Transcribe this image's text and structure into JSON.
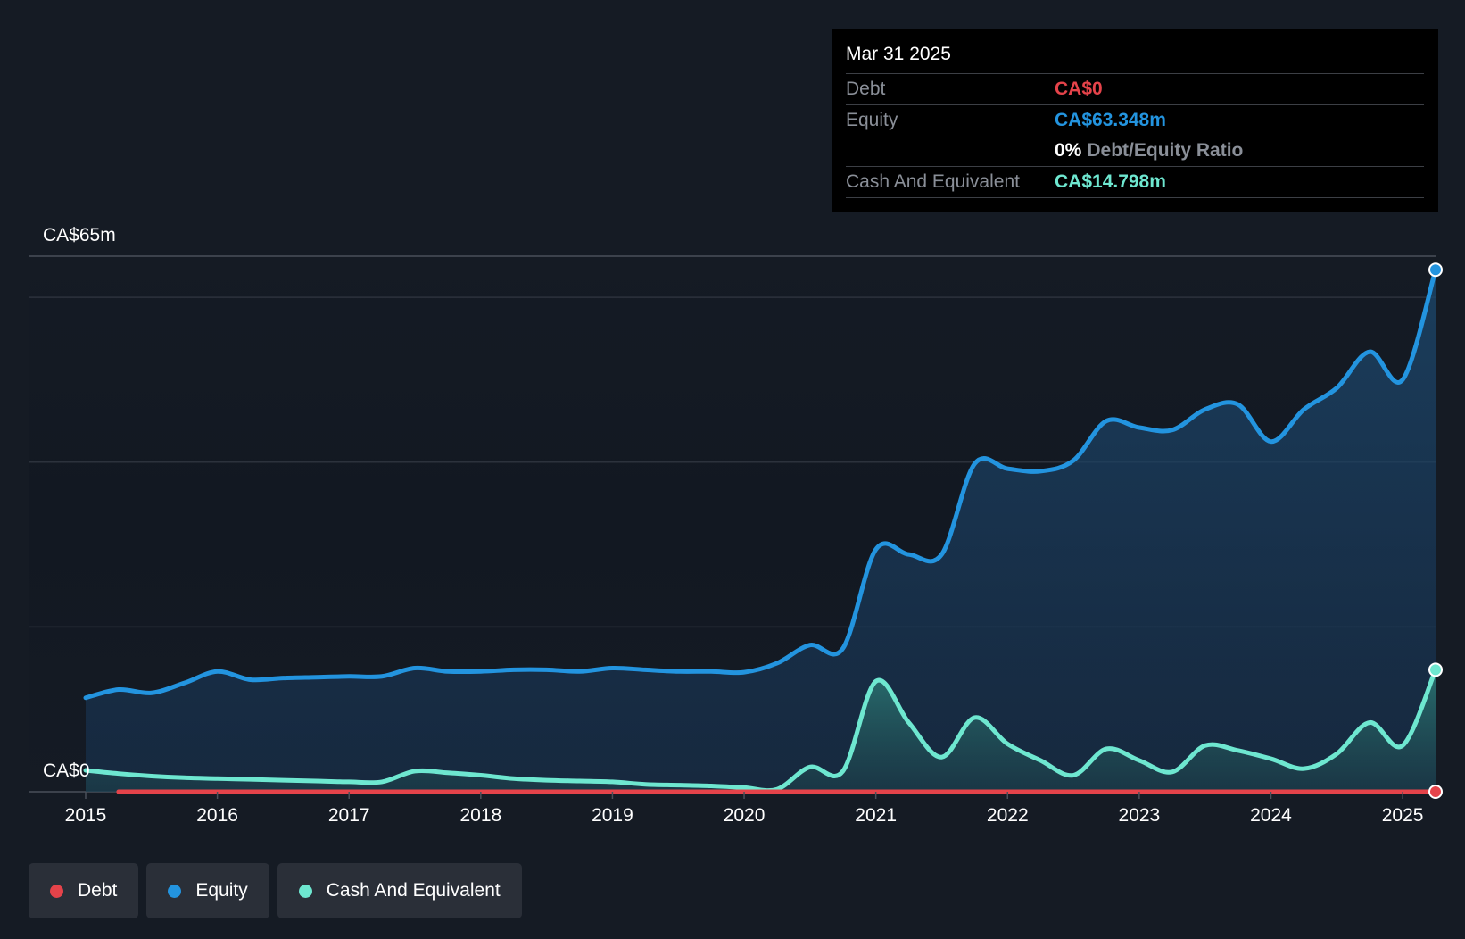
{
  "colors": {
    "debt": "#e5434a",
    "equity": "#2394df",
    "cash": "#6ee7d0",
    "grid": "#2c323c",
    "text": "#ffffff"
  },
  "tooltip": {
    "date": "Mar 31 2025",
    "debt_label": "Debt",
    "debt_value": "CA$0",
    "equity_label": "Equity",
    "equity_value": "CA$63.348m",
    "ratio_value": "0%",
    "ratio_label": "Debt/Equity Ratio",
    "cash_label": "Cash And Equivalent",
    "cash_value": "CA$14.798m"
  },
  "legend": [
    {
      "label": "Debt",
      "color": "#e5434a"
    },
    {
      "label": "Equity",
      "color": "#2394df"
    },
    {
      "label": "Cash And Equivalent",
      "color": "#6ee7d0"
    }
  ],
  "chart_data": {
    "type": "area",
    "title": "",
    "y_top_label": "CA$65m",
    "y_bottom_label": "CA$0",
    "ylim": [
      0,
      65
    ],
    "xlim": [
      2015,
      2025.25
    ],
    "x_ticks": [
      "2015",
      "2016",
      "2017",
      "2018",
      "2019",
      "2020",
      "2021",
      "2022",
      "2023",
      "2024",
      "2025"
    ],
    "gridlines": [
      0,
      20,
      40,
      60
    ],
    "series": [
      {
        "name": "Equity",
        "x": [
          2015.0,
          2015.25,
          2015.5,
          2015.75,
          2016.0,
          2016.25,
          2016.5,
          2016.75,
          2017.0,
          2017.25,
          2017.5,
          2017.75,
          2018.0,
          2018.25,
          2018.5,
          2018.75,
          2019.0,
          2019.25,
          2019.5,
          2019.75,
          2020.0,
          2020.25,
          2020.5,
          2020.75,
          2021.0,
          2021.25,
          2021.5,
          2021.75,
          2022.0,
          2022.25,
          2022.5,
          2022.75,
          2023.0,
          2023.25,
          2023.5,
          2023.75,
          2024.0,
          2024.25,
          2024.5,
          2024.75,
          2025.0,
          2025.25
        ],
        "values": [
          11.4,
          12.4,
          12.0,
          13.2,
          14.6,
          13.6,
          13.8,
          13.9,
          14.0,
          14.0,
          15.0,
          14.6,
          14.6,
          14.8,
          14.8,
          14.6,
          15.0,
          14.8,
          14.6,
          14.6,
          14.5,
          15.6,
          17.8,
          17.4,
          29.4,
          28.8,
          28.8,
          39.8,
          39.2,
          38.9,
          40.2,
          45.0,
          44.2,
          43.9,
          46.4,
          47.0,
          42.5,
          46.4,
          49.0,
          53.4,
          50.0,
          63.348
        ]
      },
      {
        "name": "Cash And Equivalent",
        "x": [
          2015.0,
          2015.25,
          2015.5,
          2015.75,
          2016.0,
          2016.25,
          2016.5,
          2016.75,
          2017.0,
          2017.25,
          2017.5,
          2017.75,
          2018.0,
          2018.25,
          2018.5,
          2018.75,
          2019.0,
          2019.25,
          2019.5,
          2019.75,
          2020.0,
          2020.25,
          2020.5,
          2020.75,
          2021.0,
          2021.25,
          2021.5,
          2021.75,
          2022.0,
          2022.25,
          2022.5,
          2022.75,
          2023.0,
          2023.25,
          2023.5,
          2023.75,
          2024.0,
          2024.25,
          2024.5,
          2024.75,
          2025.0,
          2025.25
        ],
        "values": [
          2.6,
          2.2,
          1.9,
          1.7,
          1.6,
          1.5,
          1.4,
          1.3,
          1.2,
          1.2,
          2.5,
          2.3,
          2.0,
          1.6,
          1.4,
          1.3,
          1.2,
          0.9,
          0.8,
          0.7,
          0.5,
          0.3,
          3.0,
          2.5,
          13.4,
          8.4,
          4.2,
          9.0,
          5.8,
          3.8,
          2.0,
          5.2,
          3.8,
          2.4,
          5.6,
          5.0,
          4.0,
          2.8,
          4.6,
          8.4,
          5.6,
          14.798
        ]
      },
      {
        "name": "Debt",
        "x": [
          2015.25,
          2025.25
        ],
        "values": [
          0,
          0
        ]
      }
    ]
  }
}
